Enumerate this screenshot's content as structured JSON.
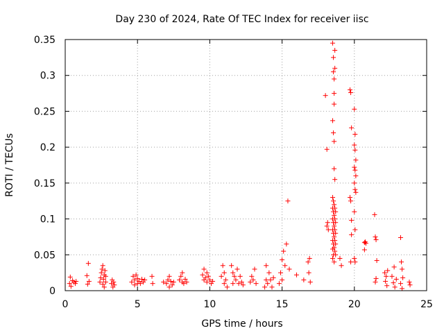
{
  "chart_data": {
    "type": "scatter",
    "title": "Day 230 of 2024, Rate Of TEC Index for receiver iisc",
    "xlabel": "GPS time / hours",
    "ylabel": "ROTI / TECUs",
    "xlim": [
      0,
      25
    ],
    "ylim": [
      0,
      0.35
    ],
    "xticks": [
      0,
      5,
      10,
      15,
      20,
      25
    ],
    "yticks": [
      0,
      0.05,
      0.1,
      0.15,
      0.2,
      0.25,
      0.3,
      0.35
    ],
    "xtick_labels": [
      "0",
      "5",
      "10",
      "15",
      "20",
      "25"
    ],
    "ytick_labels": [
      "0",
      "0.05",
      "0.1",
      "0.15",
      "0.2",
      "0.25",
      "0.3",
      "0.35"
    ],
    "grid": true,
    "marker": "+",
    "color": "#ff0000",
    "series": [
      {
        "name": "iisc ROTI",
        "points": [
          [
            0.3,
            0.01
          ],
          [
            0.35,
            0.019
          ],
          [
            0.4,
            0.006
          ],
          [
            0.5,
            0.014
          ],
          [
            0.6,
            0.012
          ],
          [
            0.7,
            0.01
          ],
          [
            0.75,
            0.013
          ],
          [
            1.5,
            0.021
          ],
          [
            1.55,
            0.009
          ],
          [
            1.6,
            0.038
          ],
          [
            1.65,
            0.013
          ],
          [
            2.4,
            0.012
          ],
          [
            2.45,
            0.018
          ],
          [
            2.5,
            0.025
          ],
          [
            2.55,
            0.03
          ],
          [
            2.6,
            0.035
          ],
          [
            2.6,
            0.009
          ],
          [
            2.65,
            0.016
          ],
          [
            2.7,
            0.022
          ],
          [
            2.7,
            0.005
          ],
          [
            2.75,
            0.028
          ],
          [
            2.8,
            0.02
          ],
          [
            2.8,
            0.012
          ],
          [
            3.2,
            0.01
          ],
          [
            3.25,
            0.015
          ],
          [
            3.3,
            0.005
          ],
          [
            3.35,
            0.012
          ],
          [
            3.4,
            0.008
          ],
          [
            4.6,
            0.012
          ],
          [
            4.7,
            0.02
          ],
          [
            4.8,
            0.015
          ],
          [
            4.8,
            0.008
          ],
          [
            4.9,
            0.022
          ],
          [
            5.0,
            0.01
          ],
          [
            5.0,
            0.017
          ],
          [
            5.1,
            0.013
          ],
          [
            5.2,
            0.01
          ],
          [
            5.3,
            0.016
          ],
          [
            5.4,
            0.012
          ],
          [
            5.5,
            0.015
          ],
          [
            6.0,
            0.02
          ],
          [
            6.05,
            0.01
          ],
          [
            6.8,
            0.012
          ],
          [
            7.0,
            0.01
          ],
          [
            7.1,
            0.015
          ],
          [
            7.2,
            0.02
          ],
          [
            7.2,
            0.005
          ],
          [
            7.3,
            0.013
          ],
          [
            7.4,
            0.008
          ],
          [
            7.5,
            0.012
          ],
          [
            7.9,
            0.015
          ],
          [
            8.0,
            0.02
          ],
          [
            8.1,
            0.012
          ],
          [
            8.1,
            0.025
          ],
          [
            8.2,
            0.01
          ],
          [
            8.3,
            0.016
          ],
          [
            8.4,
            0.012
          ],
          [
            9.5,
            0.022
          ],
          [
            9.6,
            0.03
          ],
          [
            9.6,
            0.015
          ],
          [
            9.7,
            0.018
          ],
          [
            9.8,
            0.025
          ],
          [
            9.8,
            0.012
          ],
          [
            9.9,
            0.02
          ],
          [
            10.0,
            0.015
          ],
          [
            10.1,
            0.01
          ],
          [
            10.2,
            0.013
          ],
          [
            10.8,
            0.02
          ],
          [
            10.9,
            0.035
          ],
          [
            11.0,
            0.01
          ],
          [
            11.0,
            0.025
          ],
          [
            11.1,
            0.015
          ],
          [
            11.2,
            0.005
          ],
          [
            11.5,
            0.035
          ],
          [
            11.6,
            0.025
          ],
          [
            11.6,
            0.01
          ],
          [
            11.7,
            0.02
          ],
          [
            11.8,
            0.015
          ],
          [
            11.9,
            0.03
          ],
          [
            12.0,
            0.01
          ],
          [
            12.1,
            0.02
          ],
          [
            12.2,
            0.012
          ],
          [
            12.3,
            0.008
          ],
          [
            12.8,
            0.012
          ],
          [
            12.9,
            0.02
          ],
          [
            13.0,
            0.015
          ],
          [
            13.1,
            0.03
          ],
          [
            13.2,
            0.01
          ],
          [
            13.8,
            0.005
          ],
          [
            13.9,
            0.015
          ],
          [
            13.9,
            0.035
          ],
          [
            14.0,
            0.01
          ],
          [
            14.1,
            0.025
          ],
          [
            14.2,
            0.015
          ],
          [
            14.3,
            0.005
          ],
          [
            14.4,
            0.018
          ],
          [
            14.8,
            0.01
          ],
          [
            14.9,
            0.025
          ],
          [
            15.0,
            0.015
          ],
          [
            15.0,
            0.043
          ],
          [
            15.1,
            0.055
          ],
          [
            15.2,
            0.035
          ],
          [
            15.3,
            0.065
          ],
          [
            15.4,
            0.125
          ],
          [
            15.5,
            0.03
          ],
          [
            16.0,
            0.022
          ],
          [
            16.5,
            0.015
          ],
          [
            16.8,
            0.04
          ],
          [
            16.85,
            0.025
          ],
          [
            16.9,
            0.045
          ],
          [
            16.95,
            0.012
          ],
          [
            18.0,
            0.272
          ],
          [
            18.1,
            0.197
          ],
          [
            18.1,
            0.09
          ],
          [
            18.15,
            0.095
          ],
          [
            18.2,
            0.085
          ],
          [
            18.5,
            0.345
          ],
          [
            18.55,
            0.325
          ],
          [
            18.55,
            0.305
          ],
          [
            18.6,
            0.295
          ],
          [
            18.6,
            0.275
          ],
          [
            18.6,
            0.26
          ],
          [
            18.65,
            0.335
          ],
          [
            18.65,
            0.31
          ],
          [
            18.5,
            0.237
          ],
          [
            18.55,
            0.22
          ],
          [
            18.6,
            0.208
          ],
          [
            18.6,
            0.17
          ],
          [
            18.65,
            0.155
          ],
          [
            18.5,
            0.13
          ],
          [
            18.5,
            0.115
          ],
          [
            18.5,
            0.1
          ],
          [
            18.5,
            0.085
          ],
          [
            18.5,
            0.07
          ],
          [
            18.5,
            0.058
          ],
          [
            18.5,
            0.045
          ],
          [
            18.55,
            0.125
          ],
          [
            18.55,
            0.11
          ],
          [
            18.55,
            0.095
          ],
          [
            18.55,
            0.08
          ],
          [
            18.55,
            0.065
          ],
          [
            18.55,
            0.05
          ],
          [
            18.6,
            0.12
          ],
          [
            18.6,
            0.105
          ],
          [
            18.6,
            0.09
          ],
          [
            18.6,
            0.075
          ],
          [
            18.6,
            0.06
          ],
          [
            18.65,
            0.115
          ],
          [
            18.65,
            0.1
          ],
          [
            18.65,
            0.085
          ],
          [
            18.65,
            0.07
          ],
          [
            18.65,
            0.055
          ],
          [
            18.7,
            0.11
          ],
          [
            18.7,
            0.095
          ],
          [
            18.7,
            0.08
          ],
          [
            18.7,
            0.065
          ],
          [
            18.7,
            0.05
          ],
          [
            18.6,
            0.04
          ],
          [
            19.0,
            0.045
          ],
          [
            19.1,
            0.035
          ],
          [
            19.7,
            0.28
          ],
          [
            19.75,
            0.276
          ],
          [
            19.8,
            0.227
          ],
          [
            19.7,
            0.13
          ],
          [
            19.75,
            0.125
          ],
          [
            19.8,
            0.098
          ],
          [
            19.8,
            0.078
          ],
          [
            19.75,
            0.04
          ],
          [
            20.0,
            0.253
          ],
          [
            20.05,
            0.218
          ],
          [
            20.0,
            0.203
          ],
          [
            20.05,
            0.196
          ],
          [
            20.1,
            0.182
          ],
          [
            20.0,
            0.172
          ],
          [
            20.05,
            0.168
          ],
          [
            20.1,
            0.16
          ],
          [
            20.0,
            0.15
          ],
          [
            20.05,
            0.141
          ],
          [
            20.1,
            0.137
          ],
          [
            20.0,
            0.11
          ],
          [
            20.05,
            0.085
          ],
          [
            20.0,
            0.045
          ],
          [
            20.05,
            0.04
          ],
          [
            20.7,
            0.067
          ],
          [
            20.75,
            0.068
          ],
          [
            20.8,
            0.066
          ],
          [
            20.7,
            0.057
          ],
          [
            21.4,
            0.106
          ],
          [
            21.45,
            0.075
          ],
          [
            21.5,
            0.071
          ],
          [
            21.55,
            0.042
          ],
          [
            21.5,
            0.017
          ],
          [
            21.45,
            0.012
          ],
          [
            22.1,
            0.025
          ],
          [
            22.15,
            0.013
          ],
          [
            22.2,
            0.02
          ],
          [
            22.25,
            0.007
          ],
          [
            22.3,
            0.028
          ],
          [
            22.6,
            0.02
          ],
          [
            22.7,
            0.011
          ],
          [
            22.75,
            0.033
          ],
          [
            22.8,
            0.005
          ],
          [
            22.9,
            0.016
          ],
          [
            23.2,
            0.074
          ],
          [
            23.25,
            0.04
          ],
          [
            23.3,
            0.03
          ],
          [
            23.35,
            0.018
          ],
          [
            23.2,
            0.01
          ],
          [
            23.3,
            0.003
          ],
          [
            23.8,
            0.012
          ],
          [
            23.85,
            0.008
          ]
        ]
      }
    ]
  }
}
